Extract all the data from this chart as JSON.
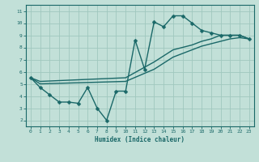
{
  "title": "",
  "xlabel": "Humidex (Indice chaleur)",
  "ylabel": "",
  "background_color": "#c2e0d8",
  "grid_color": "#a0c8be",
  "line_color": "#1a6868",
  "xlim": [
    -0.5,
    23.5
  ],
  "ylim": [
    1.5,
    11.5
  ],
  "xticks": [
    0,
    1,
    2,
    3,
    4,
    5,
    6,
    7,
    8,
    9,
    10,
    11,
    12,
    13,
    14,
    15,
    16,
    17,
    18,
    19,
    20,
    21,
    22,
    23
  ],
  "yticks": [
    2,
    3,
    4,
    5,
    6,
    7,
    8,
    9,
    10,
    11
  ],
  "line1_x": [
    0,
    1,
    2,
    3,
    4,
    5,
    6,
    7,
    8,
    9,
    10,
    11,
    12,
    13,
    14,
    15,
    16,
    17,
    18,
    19,
    20,
    21,
    22,
    23
  ],
  "line1_y": [
    5.5,
    4.7,
    4.1,
    3.5,
    3.5,
    3.4,
    4.7,
    3.0,
    2.0,
    4.4,
    4.4,
    8.6,
    6.2,
    10.1,
    9.7,
    10.6,
    10.6,
    10.0,
    9.4,
    9.2,
    9.0,
    9.0,
    9.0,
    8.7
  ],
  "line2_x": [
    0,
    1,
    10,
    13,
    15,
    16,
    17,
    18,
    19,
    20,
    21,
    22,
    23
  ],
  "line2_y": [
    5.5,
    5.0,
    5.2,
    6.2,
    7.2,
    7.5,
    7.8,
    8.1,
    8.3,
    8.5,
    8.7,
    8.8,
    8.7
  ],
  "line3_x": [
    0,
    1,
    10,
    13,
    15,
    16,
    17,
    18,
    19,
    20,
    21,
    22,
    23
  ],
  "line3_y": [
    5.5,
    5.2,
    5.5,
    6.8,
    7.8,
    8.0,
    8.2,
    8.5,
    8.7,
    9.0,
    9.0,
    9.0,
    8.7
  ],
  "marker_size": 2.5,
  "line_width": 1.0
}
